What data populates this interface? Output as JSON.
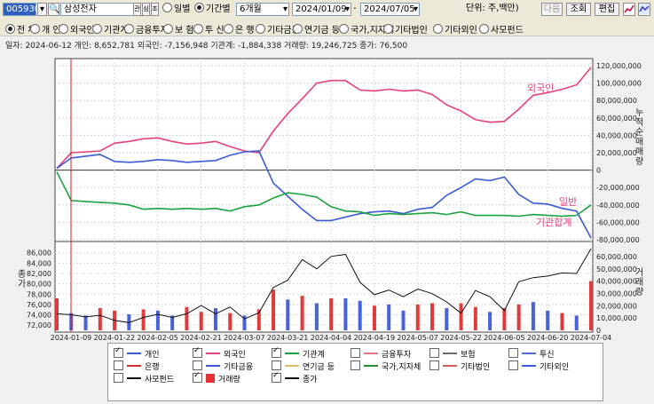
{
  "toolbar": {
    "code": "005930",
    "name": "삼성전자",
    "btn_a": "관",
    "btn_b": "심",
    "btn_c": "조",
    "radio_daily": "일별",
    "radio_period": "기간별",
    "period": "6개월",
    "date_from": "2024/01/09",
    "date_to": "2024/07/05",
    "unit": "단위: 주,백만)",
    "next": "다음",
    "search": "조회",
    "edit": "편집"
  },
  "categories": [
    "전 체",
    "개 인",
    "외국인",
    "기관계",
    "금융투자",
    "보 험",
    "투 신",
    "은 행",
    "기타금융",
    "연기금 등",
    "국가,지자체",
    "기타법인",
    "기타외인",
    "사모펀드"
  ],
  "info": {
    "text": "일자: 2024-06-12  개인: 8,652,781  외국인: -7,156,948  기관계: -1,884,338  거래량: 19,246,725  종가: 76,500"
  },
  "chart_data": {
    "type": "line",
    "x": [
      "2024-01-09",
      "2024-01-22",
      "2024-02-05",
      "2024-02-21",
      "2024-03-07",
      "2024-03-21",
      "2024-04-04",
      "2024-04-19",
      "2024-05-07",
      "2024-05-22",
      "2024-06-05",
      "2024-06-20",
      "2024-07-04"
    ],
    "upper": {
      "ylabel": "누적순매매량",
      "ylim": [
        -80000000,
        120000000
      ],
      "yticks": [
        "120,000,000",
        "100,000,000",
        "80,000,000",
        "60,000,000",
        "40,000,000",
        "20,000,000",
        "0",
        "-20,000,000",
        "-40,000,000",
        "-60,000,000",
        "-80,000,000"
      ],
      "series": [
        {
          "name": "외국인",
          "color": "#e8407a",
          "values": [
            2000000,
            20000000,
            21000000,
            22000000,
            31000000,
            33000000,
            36000000,
            37000000,
            33000000,
            30000000,
            31000000,
            33000000,
            27000000,
            22000000,
            20000000,
            45000000,
            65000000,
            82000000,
            100000000,
            103000000,
            103000000,
            92000000,
            91000000,
            93000000,
            91000000,
            92000000,
            87000000,
            75000000,
            68000000,
            58000000,
            55000000,
            56000000,
            70000000,
            86000000,
            89000000,
            93000000,
            98000000,
            118000000
          ]
        },
        {
          "name": "개인",
          "color": "#3a5bd6",
          "values": [
            2000000,
            14000000,
            16000000,
            18000000,
            10000000,
            9000000,
            10000000,
            12000000,
            11000000,
            9000000,
            10000000,
            11000000,
            17000000,
            21000000,
            22000000,
            -15000000,
            -30000000,
            -45000000,
            -58000000,
            -58000000,
            -54000000,
            -50000000,
            -48000000,
            -47000000,
            -50000000,
            -45000000,
            -43000000,
            -29000000,
            -20000000,
            -10000000,
            -12000000,
            -8000000,
            -28000000,
            -38000000,
            -39000000,
            -44000000,
            -47000000,
            -78000000
          ]
        },
        {
          "name": "기관계",
          "color": "#1aa340",
          "values": [
            -2000000,
            -35000000,
            -36000000,
            -37000000,
            -38000000,
            -40000000,
            -45000000,
            -44000000,
            -45000000,
            -44000000,
            -45000000,
            -44000000,
            -47000000,
            -42000000,
            -40000000,
            -32000000,
            -26000000,
            -28000000,
            -31000000,
            -42000000,
            -47000000,
            -48000000,
            -52000000,
            -50000000,
            -51000000,
            -50000000,
            -49000000,
            -51000000,
            -48000000,
            -52000000,
            -52000000,
            -52000000,
            -53000000,
            -51000000,
            -52000000,
            -53000000,
            -52000000,
            -40000000
          ]
        }
      ],
      "annotations": [
        {
          "text": "외국인",
          "color": "#e8407a"
        },
        {
          "text": "일반",
          "color": "#e8407a"
        },
        {
          "text": "기관합계",
          "color": "#e8407a"
        }
      ]
    },
    "lower": {
      "ylabel_left": "종가",
      "ylabel_right": "거래량",
      "left_ticks": [
        "86,000",
        "84,000",
        "82,000",
        "80,000",
        "78,000",
        "76,000",
        "74,000",
        "72,000"
      ],
      "right_ticks": [
        "60,000,000",
        "50,000,000",
        "40,000,000",
        "30,000,000",
        "20,000,000",
        "10,000,000",
        "0"
      ],
      "price_ylim": [
        71000,
        87500
      ],
      "volume_ylim": [
        0,
        65000000
      ],
      "price": [
        74200,
        74000,
        73600,
        73900,
        72900,
        72500,
        73500,
        74100,
        73500,
        74200,
        75800,
        74200,
        75500,
        73200,
        74400,
        79300,
        80700,
        84700,
        82900,
        85300,
        85700,
        80300,
        77900,
        78800,
        77500,
        79000,
        78100,
        76500,
        74300,
        78700,
        77500,
        74800,
        80400,
        81200,
        81500,
        82100,
        82000,
        86800
      ],
      "volume": [
        26000000,
        14000000,
        12000000,
        18000000,
        16000000,
        13000000,
        17000000,
        16000000,
        12000000,
        19000000,
        15000000,
        18000000,
        14000000,
        12000000,
        17000000,
        33000000,
        25000000,
        28000000,
        22000000,
        26000000,
        26000000,
        24000000,
        20000000,
        21000000,
        16000000,
        21000000,
        22000000,
        18000000,
        22000000,
        19000000,
        15000000,
        18000000,
        21000000,
        23000000,
        16000000,
        14000000,
        12000000,
        40000000
      ],
      "volume_colors": [
        "r",
        "b",
        "b",
        "r",
        "r",
        "b",
        "r",
        "b",
        "b",
        "r",
        "r",
        "b",
        "r",
        "b",
        "r",
        "r",
        "b",
        "r",
        "b",
        "r",
        "b",
        "b",
        "r",
        "b",
        "b",
        "r",
        "r",
        "b",
        "r",
        "r",
        "b",
        "r",
        "r",
        "b",
        "b",
        "r",
        "b",
        "r"
      ]
    }
  },
  "legend": [
    {
      "label": "개인",
      "checked": true,
      "color": "#3a5bd6",
      "kind": "line"
    },
    {
      "label": "외국인",
      "checked": true,
      "color": "#e8407a",
      "kind": "line"
    },
    {
      "label": "기관계",
      "checked": true,
      "color": "#1aa340",
      "kind": "line"
    },
    {
      "label": "금융투자",
      "checked": false,
      "color": "#e07a7a",
      "kind": "line"
    },
    {
      "label": "보험",
      "checked": false,
      "color": "#6b6b6b",
      "kind": "line"
    },
    {
      "label": "투신",
      "checked": false,
      "color": "#4a6bd0",
      "kind": "line"
    },
    {
      "label": "은행",
      "checked": false,
      "color": "#d43030",
      "kind": "line"
    },
    {
      "label": "기타금융",
      "checked": false,
      "color": "#3a5bd6",
      "kind": "line"
    },
    {
      "label": "연기금 등",
      "checked": false,
      "color": "#d4c060",
      "kind": "line"
    },
    {
      "label": "국가,지자체",
      "checked": false,
      "color": "#2a8a3a",
      "kind": "line"
    },
    {
      "label": "기타법인",
      "checked": false,
      "color": "#d46060",
      "kind": "line"
    },
    {
      "label": "기타외인",
      "checked": false,
      "color": "#3a5bd6",
      "kind": "line"
    },
    {
      "label": "사모펀드",
      "checked": false,
      "color": "#111111",
      "kind": "line"
    },
    {
      "label": "거래량",
      "checked": true,
      "color": "#e83030",
      "kind": "box"
    },
    {
      "label": "종가",
      "checked": true,
      "color": "#111111",
      "kind": "line"
    }
  ]
}
